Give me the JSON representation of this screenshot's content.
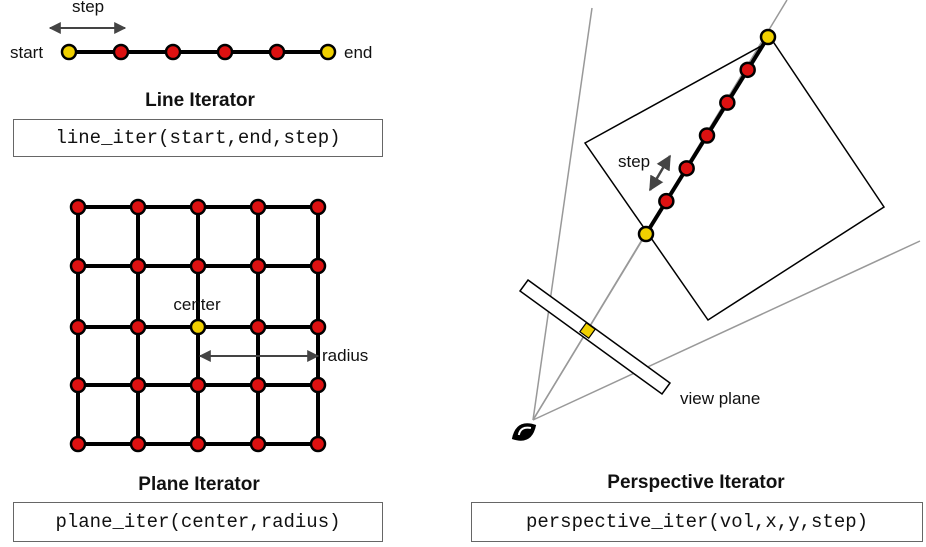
{
  "line_panel": {
    "title": "Line Iterator",
    "code": "line_iter(start,end,step)",
    "start_label": "start",
    "end_label": "end",
    "step_label": "step"
  },
  "plane_panel": {
    "title": "Plane Iterator",
    "code": "plane_iter(center,radius)",
    "center_label": "center",
    "radius_label": "radius"
  },
  "perspective_panel": {
    "title": "Perspective Iterator",
    "code": "perspective_iter(vol,x,y,step)",
    "step_label": "step",
    "view_plane_label": "view plane"
  },
  "colors": {
    "sample_point": "#dd1111",
    "endpoint": "#f0d000",
    "stroke": "#000000",
    "ray": "#999999"
  },
  "icons": [
    "eye-icon",
    "double-arrow-icon"
  ]
}
